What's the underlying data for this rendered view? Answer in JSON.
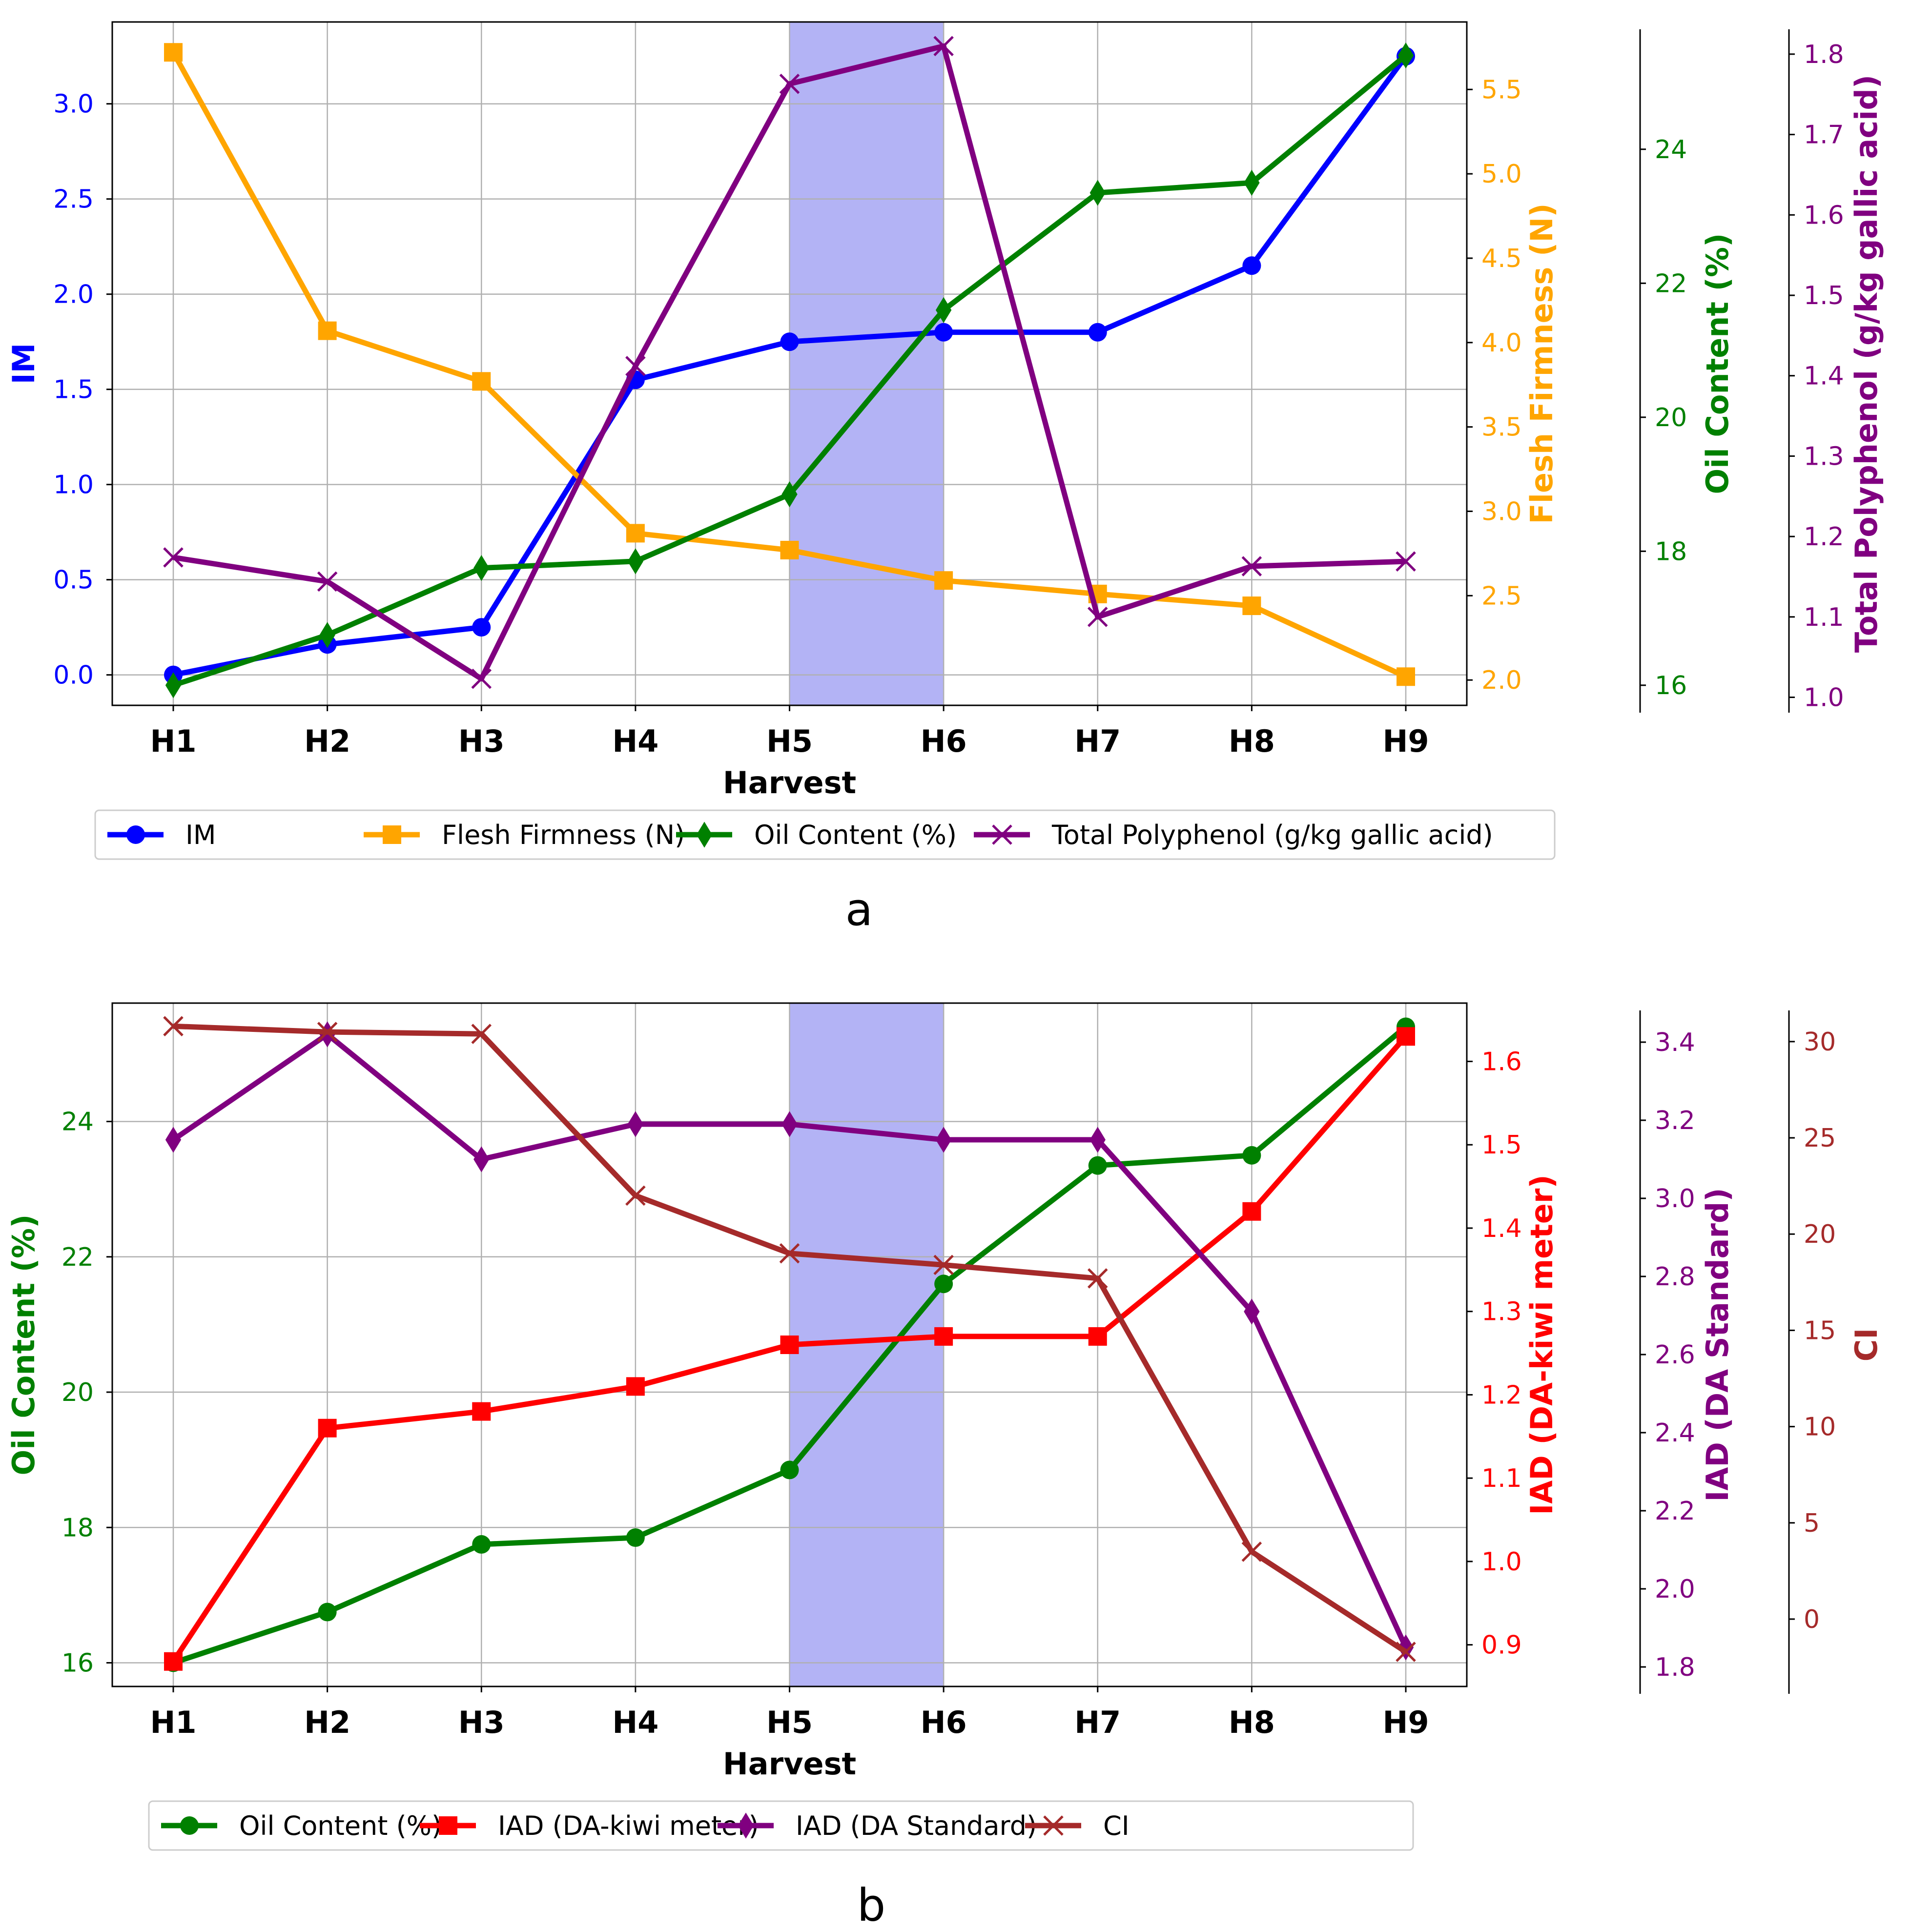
{
  "chart_data": [
    {
      "panel_label": "a",
      "type": "line",
      "categories": [
        "H1",
        "H2",
        "H3",
        "H4",
        "H5",
        "H6",
        "H7",
        "H8",
        "H9"
      ],
      "xlabel": "Harvest",
      "highlight": {
        "from": "H5",
        "to": "H6",
        "color": "#b3b3f5"
      },
      "axes": [
        {
          "id": "im",
          "label": "IM",
          "color": "#0000ff",
          "side": "left",
          "ylim": [
            -0.16,
            3.43
          ],
          "ticks": [
            "0.0",
            "0.5",
            "1.0",
            "1.5",
            "2.0",
            "2.5",
            "3.0"
          ]
        },
        {
          "id": "ff",
          "label": "Flesh Firmness (N)",
          "color": "#ffa500",
          "side": "right",
          "ylim": [
            1.85,
            5.9
          ],
          "ticks": [
            "2.0",
            "2.5",
            "3.0",
            "3.5",
            "4.0",
            "4.5",
            "5.0",
            "5.5"
          ]
        },
        {
          "id": "oil",
          "label": "Oil Content (%)",
          "color": "#008000",
          "side": "right",
          "ylim": [
            15.7,
            25.9
          ],
          "ticks": [
            "16",
            "18",
            "20",
            "22",
            "24"
          ]
        },
        {
          "id": "tp",
          "label": "Total Polyphenol (g/kg gallic acid)",
          "color": "#800080",
          "side": "right",
          "ylim": [
            0.99,
            1.84
          ],
          "ticks": [
            "1.0",
            "1.1",
            "1.2",
            "1.3",
            "1.4",
            "1.5",
            "1.6",
            "1.7",
            "1.8"
          ]
        }
      ],
      "series": [
        {
          "name": "IM",
          "axis": "im",
          "color": "#0000ff",
          "marker": "circle",
          "values": [
            0.0,
            0.16,
            0.25,
            1.55,
            1.75,
            1.8,
            1.8,
            2.15,
            3.25
          ]
        },
        {
          "name": "Flesh Firmness (N)",
          "axis": "ff",
          "color": "#ffa500",
          "marker": "square",
          "values": [
            5.72,
            4.07,
            3.77,
            2.87,
            2.77,
            2.59,
            2.51,
            2.44,
            2.02
          ]
        },
        {
          "name": "Oil Content (%)",
          "axis": "oil",
          "color": "#008000",
          "marker": "diamond",
          "values": [
            16.0,
            16.75,
            17.75,
            17.85,
            18.85,
            21.6,
            23.35,
            23.5,
            25.4
          ]
        },
        {
          "name": "Total Polyphenol (g/kg gallic acid)",
          "axis": "tp",
          "color": "#800080",
          "marker": "x",
          "values": [
            1.174,
            1.144,
            1.023,
            1.412,
            1.763,
            1.81,
            1.1,
            1.163,
            1.169
          ]
        }
      ]
    },
    {
      "panel_label": "b",
      "type": "line",
      "categories": [
        "H1",
        "H2",
        "H3",
        "H4",
        "H5",
        "H6",
        "H7",
        "H8",
        "H9"
      ],
      "xlabel": "Harvest",
      "highlight": {
        "from": "H5",
        "to": "H6",
        "color": "#b3b3f5"
      },
      "axes": [
        {
          "id": "oil",
          "label": "Oil Content (%)",
          "color": "#008000",
          "side": "left",
          "ylim": [
            15.65,
            25.75
          ],
          "ticks": [
            "16",
            "18",
            "20",
            "22",
            "24"
          ]
        },
        {
          "id": "iadk",
          "label": "IAD (DA-kiwi meter)",
          "color": "#ff0000",
          "side": "right",
          "ylim": [
            0.85,
            1.67
          ],
          "ticks": [
            "0.9",
            "1.0",
            "1.1",
            "1.2",
            "1.3",
            "1.4",
            "1.5",
            "1.6"
          ]
        },
        {
          "id": "iads",
          "label": "IAD (DA Standard)",
          "color": "#800080",
          "side": "right",
          "ylim": [
            1.75,
            3.5
          ],
          "ticks": [
            "1.8",
            "2.0",
            "2.2",
            "2.4",
            "2.6",
            "2.8",
            "3.0",
            "3.2",
            "3.4"
          ]
        },
        {
          "id": "ci",
          "label": "CI",
          "color": "#a52a2a",
          "side": "right",
          "ylim": [
            -3.5,
            32.0
          ],
          "ticks": [
            "0",
            "5",
            "10",
            "15",
            "20",
            "25",
            "30"
          ]
        }
      ],
      "series": [
        {
          "name": "Oil Content (%)",
          "axis": "oil",
          "color": "#008000",
          "marker": "circle",
          "values": [
            16.0,
            16.75,
            17.75,
            17.85,
            18.85,
            21.6,
            23.35,
            23.5,
            25.4
          ]
        },
        {
          "name": "IAD (DA-kiwi meter)",
          "axis": "iadk",
          "color": "#ff0000",
          "marker": "square",
          "values": [
            0.88,
            1.16,
            1.18,
            1.21,
            1.26,
            1.27,
            1.27,
            1.42,
            1.63
          ]
        },
        {
          "name": "IAD (DA Standard)",
          "axis": "iads",
          "color": "#800080",
          "marker": "diamond",
          "values": [
            3.15,
            3.42,
            3.1,
            3.19,
            3.19,
            3.15,
            3.15,
            2.71,
            1.85
          ]
        },
        {
          "name": "CI",
          "axis": "ci",
          "color": "#a52a2a",
          "marker": "x",
          "values": [
            30.8,
            30.5,
            30.4,
            22.0,
            19.0,
            18.4,
            17.7,
            3.5,
            -1.7
          ]
        }
      ]
    }
  ]
}
